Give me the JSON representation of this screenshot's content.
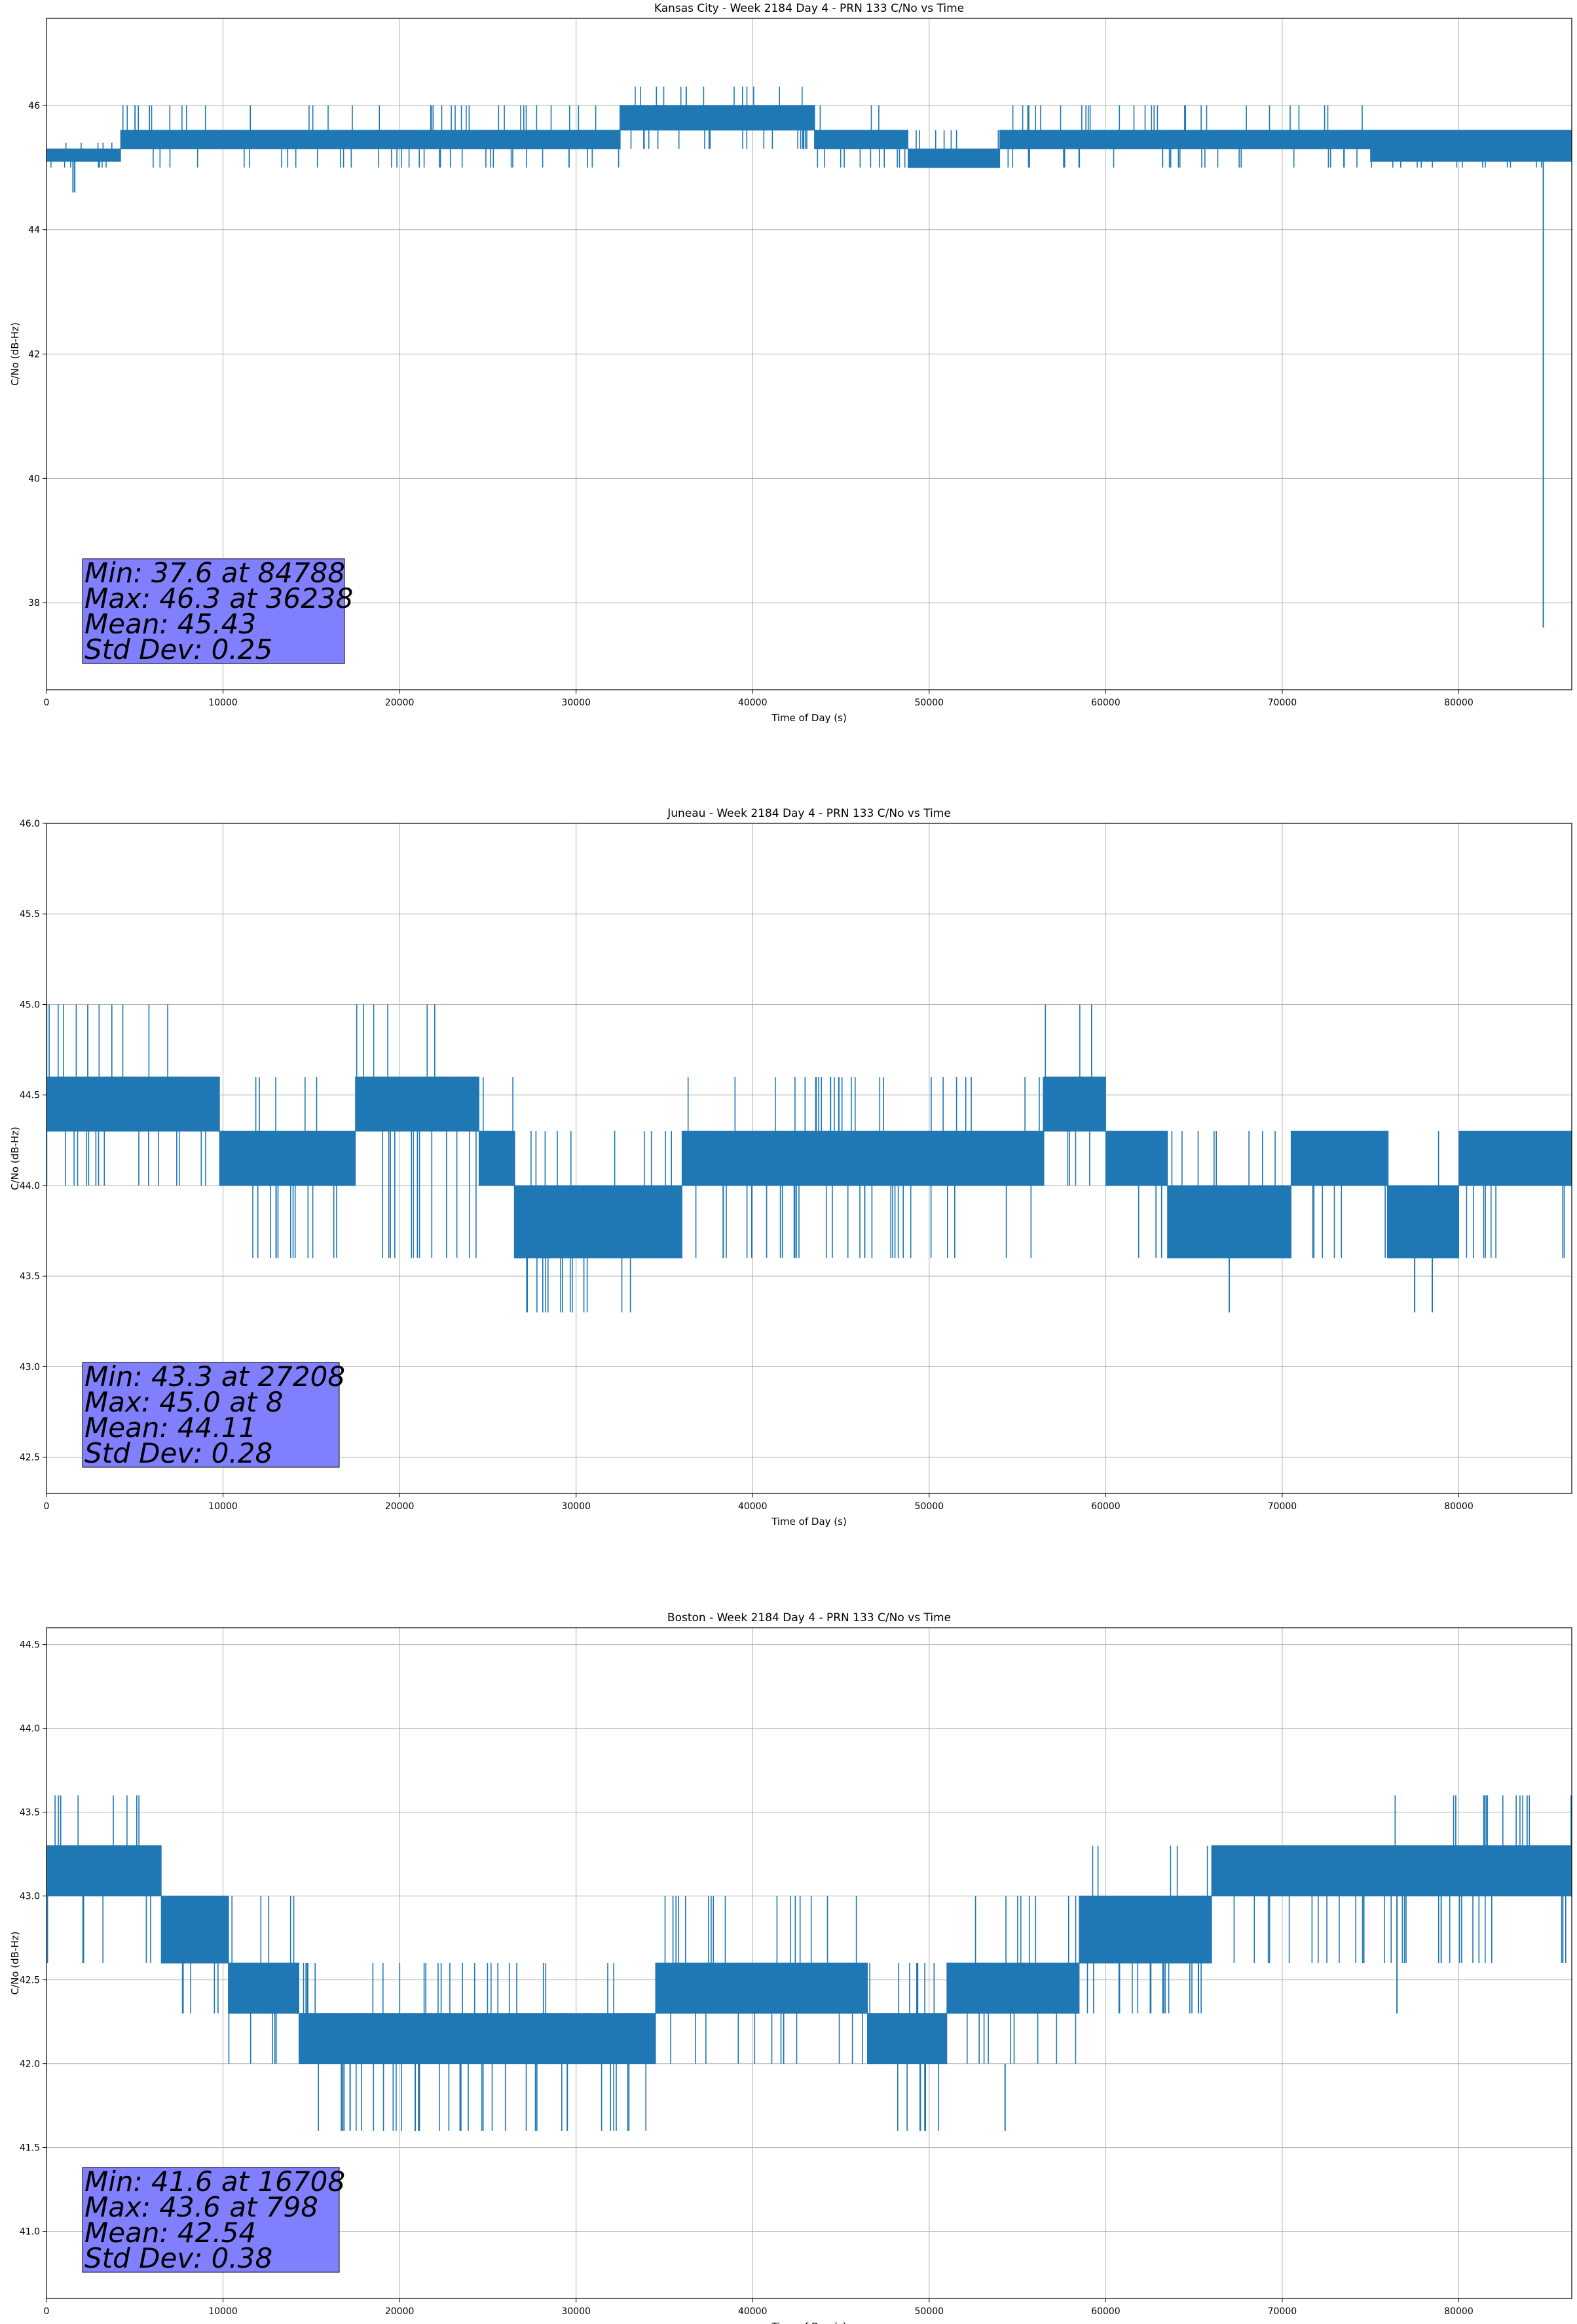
{
  "chart_data": [
    {
      "type": "line",
      "title": "Kansas City - Week 2184 Day 4 - PRN 133 C/No vs Time",
      "xlabel": "Time of Day (s)",
      "ylabel": "C/No (dB-Hz)",
      "xlim": [
        0,
        86400
      ],
      "ylim": [
        36.6,
        47.4
      ],
      "xticks": [
        0,
        10000,
        20000,
        30000,
        40000,
        50000,
        60000,
        70000,
        80000
      ],
      "yticks": [
        38,
        40,
        42,
        44,
        46
      ],
      "grid": true,
      "color": "#1f77b4",
      "series_segments": [
        {
          "x": [
            0,
            4200
          ],
          "values": [
            45.1,
            45.3
          ],
          "min": 45.0,
          "max": 45.4
        },
        {
          "x": [
            4200,
            32500
          ],
          "values": [
            45.3,
            45.6
          ],
          "min": 45.0,
          "max": 46.0
        },
        {
          "x": [
            32500,
            43500
          ],
          "values": [
            45.6,
            46.0
          ],
          "min": 45.3,
          "max": 46.3
        },
        {
          "x": [
            43500,
            48800
          ],
          "values": [
            45.3,
            45.6
          ],
          "min": 45.0,
          "max": 46.0
        },
        {
          "x": [
            48800,
            54000
          ],
          "values": [
            45.0,
            45.3
          ],
          "min": 45.0,
          "max": 45.6
        },
        {
          "x": [
            54000,
            75000
          ],
          "values": [
            45.3,
            45.6
          ],
          "min": 45.0,
          "max": 46.0
        },
        {
          "x": [
            75000,
            86400
          ],
          "values": [
            45.1,
            45.6
          ],
          "min": 45.0,
          "max": 45.6
        }
      ],
      "spikes": [
        {
          "x": 1500,
          "values": [
            44.6,
            45.3
          ]
        },
        {
          "x": 1600,
          "values": [
            44.6,
            45.3
          ]
        },
        {
          "x": 36238,
          "values": [
            45.6,
            46.3
          ]
        },
        {
          "x": 84788,
          "values": [
            37.6,
            45.6
          ]
        }
      ],
      "stats": {
        "min": "Min: 37.6 at 84788",
        "max": "Max: 46.3 at 36238",
        "mean": "Mean: 45.43",
        "std": "Std Dev: 0.25"
      }
    },
    {
      "type": "line",
      "title": "Juneau - Week 2184 Day 4 - PRN 133 C/No vs Time",
      "xlabel": "Time of Day (s)",
      "ylabel": "C/No (dB-Hz)",
      "xlim": [
        0,
        86400
      ],
      "ylim": [
        42.3,
        46.0
      ],
      "xticks": [
        0,
        10000,
        20000,
        30000,
        40000,
        50000,
        60000,
        70000,
        80000
      ],
      "yticks": [
        42.5,
        43.0,
        43.5,
        44.0,
        44.5,
        45.0,
        45.5,
        46.0
      ],
      "grid": true,
      "color": "#1f77b4",
      "series_segments": [
        {
          "x": [
            0,
            9800
          ],
          "values": [
            44.3,
            44.6
          ],
          "min": 44.0,
          "max": 45.0
        },
        {
          "x": [
            9800,
            17500
          ],
          "values": [
            44.0,
            44.3
          ],
          "min": 43.6,
          "max": 44.6
        },
        {
          "x": [
            17500,
            24500
          ],
          "values": [
            44.3,
            44.6
          ],
          "min": 43.6,
          "max": 45.0
        },
        {
          "x": [
            24500,
            26500
          ],
          "values": [
            44.0,
            44.3
          ],
          "min": 44.0,
          "max": 44.6
        },
        {
          "x": [
            26500,
            33500
          ],
          "values": [
            43.6,
            44.0
          ],
          "min": 43.3,
          "max": 44.3
        },
        {
          "x": [
            33500,
            36000
          ],
          "values": [
            43.6,
            44.0
          ],
          "min": 43.6,
          "max": 44.3
        },
        {
          "x": [
            36000,
            56500
          ],
          "values": [
            44.0,
            44.3
          ],
          "min": 43.6,
          "max": 44.6
        },
        {
          "x": [
            56500,
            60000
          ],
          "values": [
            44.3,
            44.6
          ],
          "min": 44.0,
          "max": 45.0
        },
        {
          "x": [
            60000,
            63500
          ],
          "values": [
            44.0,
            44.3
          ],
          "min": 43.6,
          "max": 44.3
        },
        {
          "x": [
            63500,
            70500
          ],
          "values": [
            43.6,
            44.0
          ],
          "min": 43.6,
          "max": 44.3
        },
        {
          "x": [
            70500,
            76000
          ],
          "values": [
            44.0,
            44.3
          ],
          "min": 43.6,
          "max": 44.3
        },
        {
          "x": [
            76000,
            80000
          ],
          "values": [
            43.6,
            44.0
          ],
          "min": 43.6,
          "max": 44.3
        },
        {
          "x": [
            80000,
            86400
          ],
          "values": [
            44.0,
            44.3
          ],
          "min": 43.6,
          "max": 44.3
        }
      ],
      "spikes": [
        {
          "x": 8,
          "values": [
            44.0,
            45.0
          ]
        },
        {
          "x": 27208,
          "values": [
            43.3,
            44.0
          ]
        },
        {
          "x": 67000,
          "values": [
            43.3,
            43.6
          ]
        },
        {
          "x": 77500,
          "values": [
            43.3,
            43.6
          ]
        },
        {
          "x": 78500,
          "values": [
            43.3,
            43.6
          ]
        }
      ],
      "stats": {
        "min": "Min: 43.3 at 27208",
        "max": "Max: 45.0 at 8",
        "mean": "Mean: 44.11",
        "std": "Std Dev: 0.28"
      }
    },
    {
      "type": "line",
      "title": "Boston - Week 2184 Day 4 - PRN 133 C/No vs Time",
      "xlabel": "Time of Day (s)",
      "ylabel": "C/No (dB-Hz)",
      "xlim": [
        0,
        86400
      ],
      "ylim": [
        40.6,
        44.6
      ],
      "xticks": [
        0,
        10000,
        20000,
        30000,
        40000,
        50000,
        60000,
        70000,
        80000
      ],
      "yticks": [
        41.0,
        41.5,
        42.0,
        42.5,
        43.0,
        43.5,
        44.0,
        44.5
      ],
      "grid": true,
      "color": "#1f77b4",
      "series_segments": [
        {
          "x": [
            0,
            6500
          ],
          "values": [
            43.0,
            43.3
          ],
          "min": 42.6,
          "max": 43.6
        },
        {
          "x": [
            6500,
            10300
          ],
          "values": [
            42.6,
            43.0
          ],
          "min": 42.3,
          "max": 43.0
        },
        {
          "x": [
            10300,
            14300
          ],
          "values": [
            42.3,
            42.6
          ],
          "min": 42.0,
          "max": 43.0
        },
        {
          "x": [
            14300,
            34500
          ],
          "values": [
            42.0,
            42.3
          ],
          "min": 41.6,
          "max": 42.6
        },
        {
          "x": [
            34500,
            46500
          ],
          "values": [
            42.3,
            42.6
          ],
          "min": 42.0,
          "max": 43.0
        },
        {
          "x": [
            46500,
            51000
          ],
          "values": [
            42.0,
            42.3
          ],
          "min": 41.6,
          "max": 42.6
        },
        {
          "x": [
            51000,
            58500
          ],
          "values": [
            42.3,
            42.6
          ],
          "min": 42.0,
          "max": 43.0
        },
        {
          "x": [
            58500,
            66000
          ],
          "values": [
            42.6,
            43.0
          ],
          "min": 42.3,
          "max": 43.3
        },
        {
          "x": [
            66000,
            75000
          ],
          "values": [
            43.0,
            43.3
          ],
          "min": 42.6,
          "max": 43.3
        },
        {
          "x": [
            75000,
            86400
          ],
          "values": [
            43.0,
            43.3
          ],
          "min": 42.6,
          "max": 43.6
        }
      ],
      "spikes": [
        {
          "x": 798,
          "values": [
            43.0,
            43.6
          ]
        },
        {
          "x": 16708,
          "values": [
            41.6,
            42.3
          ]
        },
        {
          "x": 17200,
          "values": [
            41.6,
            42.3
          ]
        },
        {
          "x": 27700,
          "values": [
            41.6,
            42.0
          ]
        },
        {
          "x": 29500,
          "values": [
            41.6,
            42.0
          ]
        },
        {
          "x": 49500,
          "values": [
            41.6,
            42.0
          ]
        },
        {
          "x": 54300,
          "values": [
            41.6,
            42.0
          ]
        },
        {
          "x": 76500,
          "values": [
            42.3,
            43.0
          ]
        }
      ],
      "stats": {
        "min": "Min: 41.6 at 16708",
        "max": "Max: 43.6 at 798",
        "mean": "Mean: 42.54",
        "std": "Std Dev: 0.38"
      }
    }
  ]
}
